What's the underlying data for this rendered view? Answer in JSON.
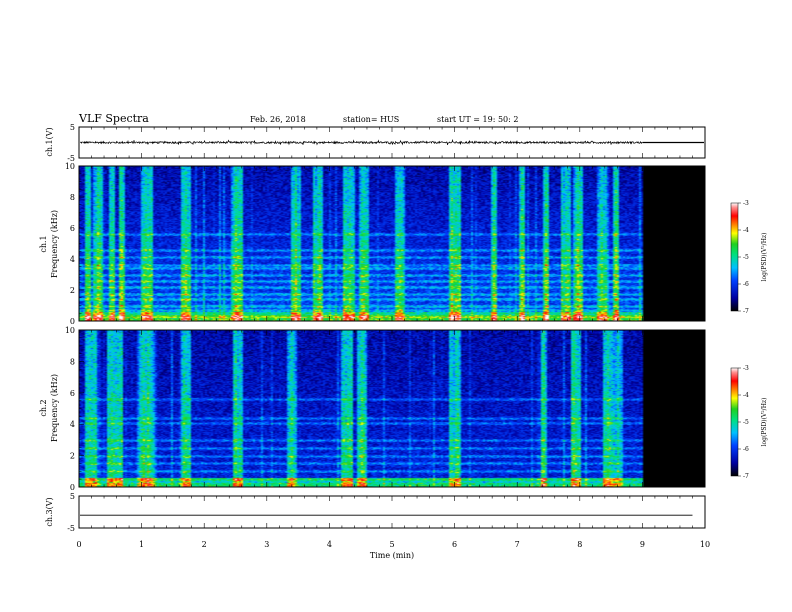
{
  "header": {
    "title": "VLF Spectra",
    "date": "Feb. 26, 2018",
    "station": "station= HUS",
    "start": "start  UT  =   19: 50: 2"
  },
  "chart_data": [
    {
      "type": "line",
      "name": "channel-1-waveform",
      "ylabel": "ch.1(V)",
      "xlim": [
        0,
        10
      ],
      "ylim": [
        -5,
        5
      ],
      "yticks": [
        5,
        -5
      ],
      "baseline": 0,
      "noise_amplitude": 0.3,
      "data_end_min": 9.0
    },
    {
      "type": "heatmap",
      "name": "channel-1-spectrogram",
      "ylabel_top": "ch.1",
      "ylabel": "Frequency  (kHz)",
      "xlim": [
        0,
        10
      ],
      "ylim": [
        0,
        10
      ],
      "yticks": [
        0,
        2,
        4,
        6,
        8,
        10
      ],
      "data_end_min": 9.0,
      "colorbar": {
        "label": "log(PSD)(V²/Hz)",
        "ticks": [
          -3,
          -4,
          -5,
          -6,
          -7
        ],
        "range": [
          -7,
          -3
        ]
      },
      "bands_khz": [
        0.35,
        0.7,
        1.0,
        1.4,
        1.75,
        2.2,
        2.6,
        3.0,
        3.4,
        3.6,
        4.1,
        4.6,
        5.6
      ],
      "impulses_min": [
        0.12,
        0.3,
        0.5,
        0.68,
        1.05,
        1.1,
        1.7,
        2.5,
        2.55,
        3.45,
        3.8,
        4.25,
        4.3,
        4.55,
        5.1,
        5.95,
        6.05,
        6.6,
        7.05,
        7.45,
        7.75,
        7.95,
        8.35,
        8.55
      ]
    },
    {
      "type": "heatmap",
      "name": "channel-2-spectrogram",
      "ylabel_top": "ch.2",
      "ylabel": "Frequency  (kHz)",
      "xlim": [
        0,
        10
      ],
      "ylim": [
        0,
        10
      ],
      "yticks": [
        0,
        2,
        4,
        6,
        8,
        10
      ],
      "data_end_min": 9.0,
      "colorbar": {
        "label": "log(PSD)(V²/Hz)",
        "ticks": [
          -3,
          -4,
          -5,
          -6,
          -7
        ],
        "range": [
          -7,
          -3
        ]
      },
      "bands_khz": [
        0.5,
        1.0,
        1.5,
        2.0,
        2.5,
        3.0,
        4.1,
        4.4,
        5.6
      ],
      "impulses_min": [
        0.12,
        0.18,
        0.5,
        0.58,
        0.65,
        1.02,
        1.08,
        1.12,
        1.7,
        2.5,
        2.55,
        3.4,
        4.25,
        4.3,
        4.5,
        5.95,
        6.0,
        7.4,
        7.9,
        7.95,
        8.45,
        8.6
      ]
    },
    {
      "type": "line",
      "name": "channel-3-waveform",
      "ylabel": "ch.3(V)",
      "xlabel": "Time  (min)",
      "xlim": [
        0,
        10
      ],
      "ylim": [
        -5,
        5
      ],
      "yticks": [
        5,
        -5
      ],
      "xticks": [
        0,
        1,
        2,
        3,
        4,
        5,
        6,
        7,
        8,
        9,
        10
      ],
      "baseline": -1.0,
      "data_end_min": 9.8
    }
  ]
}
